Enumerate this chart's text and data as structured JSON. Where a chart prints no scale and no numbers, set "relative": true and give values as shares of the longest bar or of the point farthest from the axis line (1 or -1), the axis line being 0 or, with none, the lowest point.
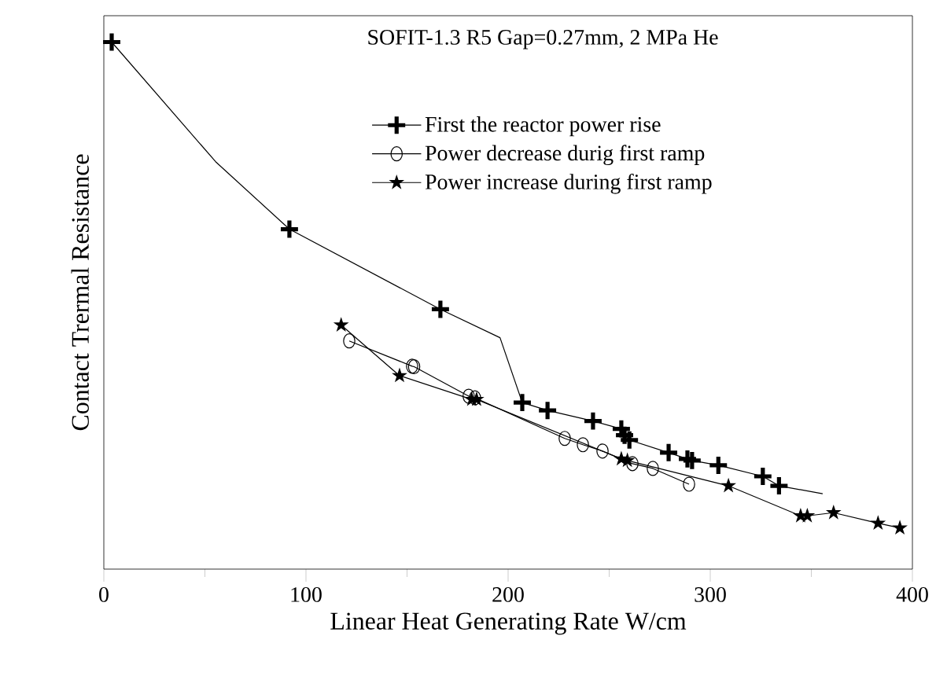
{
  "chart_data": {
    "type": "line",
    "relative": true,
    "xlabel": "Linear Heat Generating Rate W/cm",
    "ylabel": "Contact Trermal Resistance",
    "annotations": [
      "SOFIT-1.3 R5 Gap=0.27mm, 2 MPa He"
    ],
    "xlim": [
      0,
      400
    ],
    "xticks": [
      0,
      100,
      200,
      300,
      400
    ],
    "legend": "top right",
    "grid": false,
    "series": [
      {
        "color": "#000000",
        "marker": "none",
        "x": [
          3.9,
          55.3,
          91.8,
          166.5,
          196,
          207,
          219.5,
          242,
          256,
          257.6,
          260,
          279.4,
          288.7,
          291,
          304,
          326,
          334,
          355.6
        ],
        "values": [
          1.0,
          0.773,
          0.645,
          0.493,
          0.439,
          0.316,
          0.301,
          0.281,
          0.266,
          0.254,
          0.245,
          0.221,
          0.209,
          0.206,
          0.197,
          0.176,
          0.158,
          0.143
        ]
      },
      {
        "type": "scatter",
        "name": "First the reactor power rise",
        "color": "#000000",
        "marker": "cross",
        "x": [
          3.9,
          91.8,
          166.5,
          207,
          219.5,
          242,
          256,
          257.6,
          260,
          279.4,
          288.7,
          291,
          304,
          326,
          334
        ],
        "values": [
          1.0,
          0.645,
          0.493,
          0.316,
          0.301,
          0.281,
          0.266,
          0.254,
          0.245,
          0.221,
          0.209,
          0.206,
          0.197,
          0.176,
          0.158
        ]
      },
      {
        "name": "Power decrease durig first ramp",
        "color": "#000000",
        "marker": "circle",
        "x": [
          289.5,
          271.6,
          261.5,
          246.7,
          237,
          228,
          183.6,
          180.5,
          153.5,
          152.5,
          121.4
        ],
        "values": [
          0.161,
          0.191,
          0.2,
          0.224,
          0.236,
          0.248,
          0.325,
          0.328,
          0.384,
          0.385,
          0.433
        ]
      },
      {
        "name": "Power increase during first ramp",
        "color": "#000000",
        "marker": "star",
        "x": [
          117.4,
          146.3,
          182,
          184.4,
          256,
          259,
          309,
          344.7,
          348,
          361,
          383,
          393.8
        ],
        "values": [
          0.463,
          0.367,
          0.322,
          0.322,
          0.209,
          0.206,
          0.158,
          0.101,
          0.101,
          0.107,
          0.087,
          0.078
        ]
      }
    ]
  }
}
